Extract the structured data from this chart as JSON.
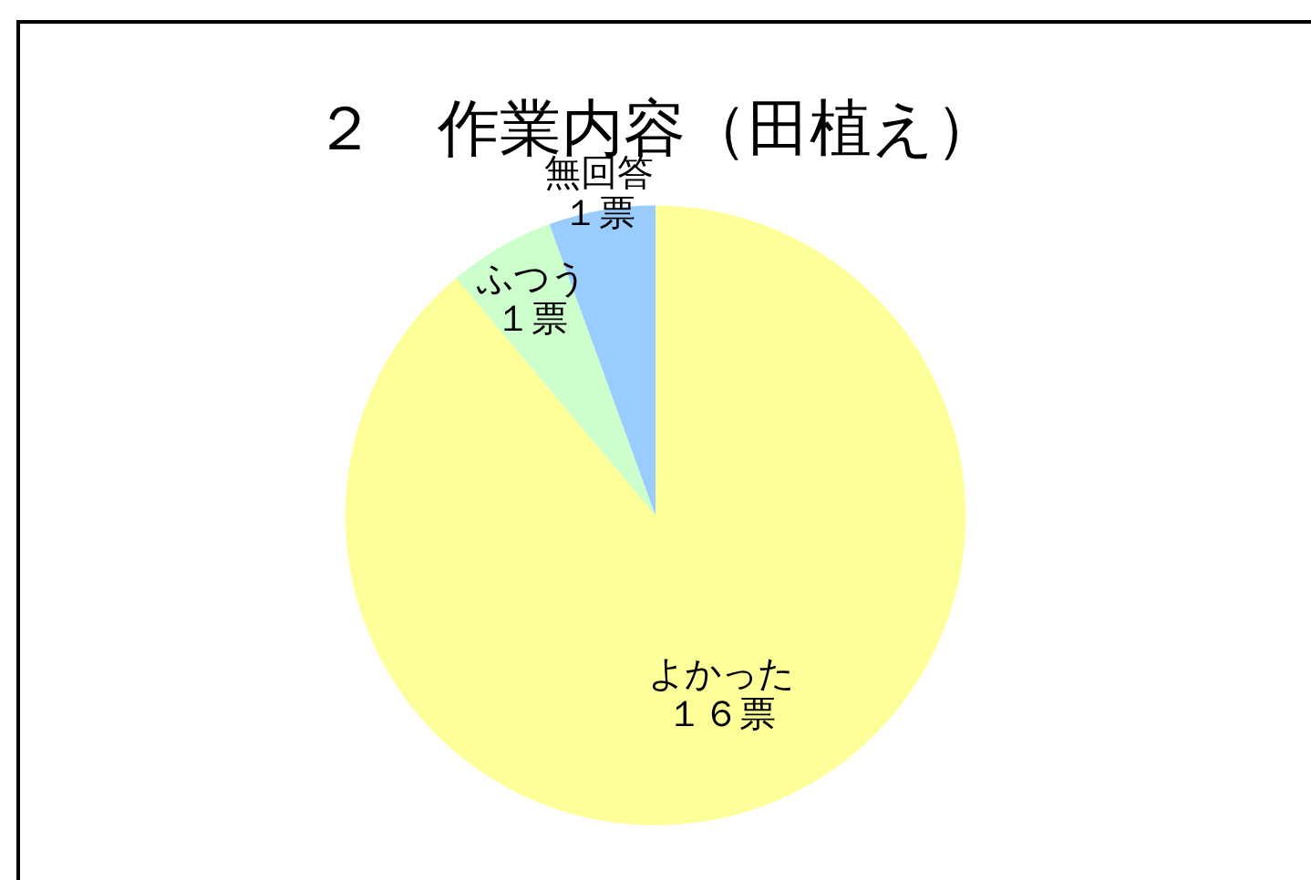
{
  "chart_data": {
    "type": "pie",
    "title": "２　作業内容（田植え）",
    "categories": [
      "よかった",
      "ふつう",
      "無回答"
    ],
    "values": [
      16,
      1,
      1
    ],
    "colors": [
      "#ffff99",
      "#ccffcc",
      "#99ccff"
    ],
    "value_labels": [
      "１６票",
      "１票",
      "１票"
    ],
    "legend": false
  }
}
